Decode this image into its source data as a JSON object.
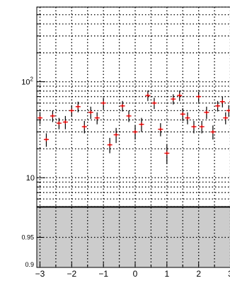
{
  "chart_data": [
    {
      "type": "scatter",
      "title": "",
      "xlabel": "",
      "ylabel": "",
      "y_scale": "log",
      "ylim": [
        5,
        600
      ],
      "xlim": [
        -3.1,
        3.1
      ],
      "grid": true,
      "grid_style": "dotted",
      "marker_color": "#e00000",
      "errorbar_color": "#000000",
      "y_tick_labels": [
        {
          "value": 10,
          "base": "10",
          "exp": ""
        },
        {
          "value": 100,
          "base": "10",
          "exp": "2"
        }
      ],
      "points": [
        {
          "x": -3.0,
          "y": 42,
          "err": 6
        },
        {
          "x": -2.8,
          "y": 25,
          "err": 4
        },
        {
          "x": -2.6,
          "y": 44,
          "err": 6
        },
        {
          "x": -2.4,
          "y": 37,
          "err": 5
        },
        {
          "x": -2.2,
          "y": 38,
          "err": 6
        },
        {
          "x": -2.0,
          "y": 50,
          "err": 7
        },
        {
          "x": -1.8,
          "y": 55,
          "err": 7
        },
        {
          "x": -1.6,
          "y": 34,
          "err": 5
        },
        {
          "x": -1.4,
          "y": 48,
          "err": 7
        },
        {
          "x": -1.2,
          "y": 42,
          "err": 6
        },
        {
          "x": -1.0,
          "y": 60,
          "err": 8
        },
        {
          "x": -0.8,
          "y": 22,
          "err": 4
        },
        {
          "x": -0.6,
          "y": 28,
          "err": 5
        },
        {
          "x": -0.4,
          "y": 56,
          "err": 7
        },
        {
          "x": -0.2,
          "y": 44,
          "err": 6
        },
        {
          "x": 0.0,
          "y": 30,
          "err": 5
        },
        {
          "x": 0.2,
          "y": 36,
          "err": 6
        },
        {
          "x": 0.4,
          "y": 72,
          "err": 9
        },
        {
          "x": 0.6,
          "y": 60,
          "err": 8
        },
        {
          "x": 0.8,
          "y": 32,
          "err": 5
        },
        {
          "x": 1.0,
          "y": 18,
          "err": 4
        },
        {
          "x": 1.2,
          "y": 66,
          "err": 8
        },
        {
          "x": 1.4,
          "y": 72,
          "err": 9
        },
        {
          "x": 1.5,
          "y": 46,
          "err": 7
        },
        {
          "x": 1.65,
          "y": 42,
          "err": 6
        },
        {
          "x": 1.85,
          "y": 34,
          "err": 5
        },
        {
          "x": 2.0,
          "y": 70,
          "err": 9
        },
        {
          "x": 2.1,
          "y": 34,
          "err": 5
        },
        {
          "x": 2.25,
          "y": 48,
          "err": 7
        },
        {
          "x": 2.45,
          "y": 30,
          "err": 5
        },
        {
          "x": 2.6,
          "y": 56,
          "err": 7
        },
        {
          "x": 2.75,
          "y": 62,
          "err": 8
        },
        {
          "x": 2.85,
          "y": 42,
          "err": 6
        },
        {
          "x": 2.95,
          "y": 50,
          "err": 7
        },
        {
          "x": 3.05,
          "y": 62,
          "err": 8
        }
      ]
    },
    {
      "type": "area",
      "title": "",
      "xlabel": "",
      "ylabel": "",
      "ylim": [
        0.9,
        1.0
      ],
      "xlim": [
        -3.1,
        3.1
      ],
      "grid": true,
      "grid_style": "dotted",
      "fill_color": "#cccccc",
      "fill_from": 0.9,
      "fill_to": 1.0,
      "y_ticks": [
        "0.9",
        "0.95"
      ],
      "x_ticks": [
        "−3",
        "−2",
        "−1",
        "0",
        "1",
        "2",
        "3"
      ],
      "x_tick_values": [
        -3,
        -2,
        -1,
        0,
        1,
        2,
        3
      ]
    }
  ]
}
